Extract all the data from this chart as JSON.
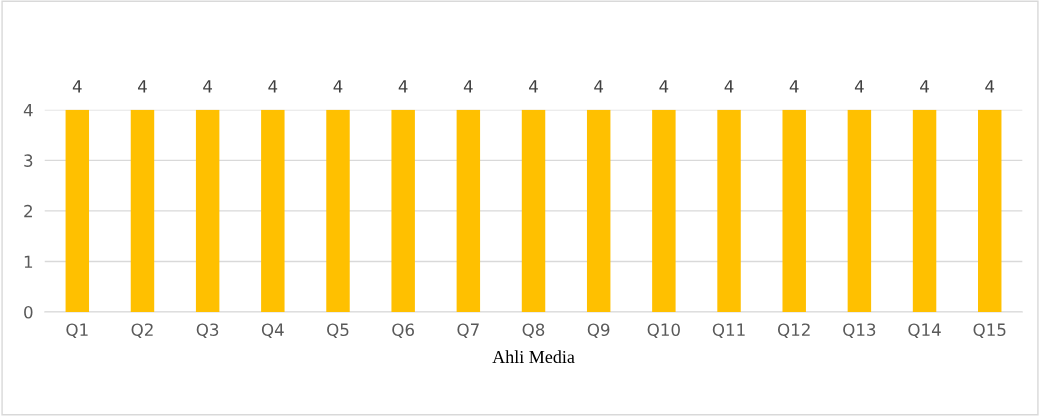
{
  "chart_data": {
    "type": "bar",
    "xlabel": "Ahli Media",
    "categories": [
      "Q1",
      "Q2",
      "Q3",
      "Q4",
      "Q5",
      "Q6",
      "Q7",
      "Q8",
      "Q9",
      "Q10",
      "Q11",
      "Q12",
      "Q13",
      "Q14",
      "Q15"
    ],
    "values": [
      4,
      4,
      4,
      4,
      4,
      4,
      4,
      4,
      4,
      4,
      4,
      4,
      4,
      4,
      4
    ],
    "color": "#ffc000",
    "ylim": [
      0,
      4
    ],
    "yticks": [
      0,
      1,
      2,
      3,
      4
    ],
    "grid": "y",
    "data_labels": true
  }
}
